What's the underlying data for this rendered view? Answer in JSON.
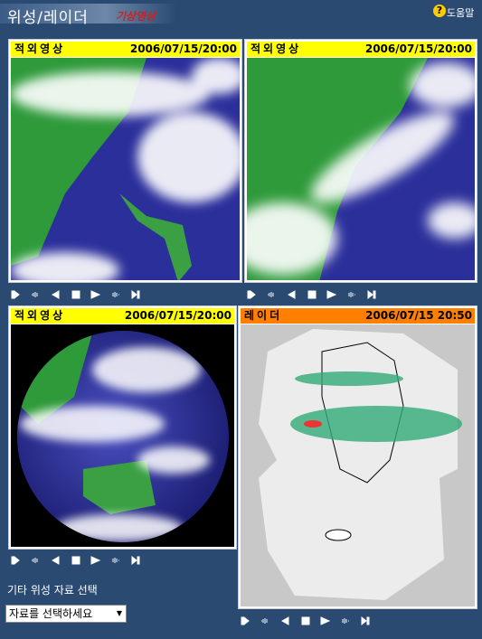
{
  "header": {
    "title": "위성/레이더",
    "subtitle": "기상영상",
    "help": "도움말"
  },
  "panels": [
    {
      "label": "적외영상",
      "timestamp": "2006/07/15/20:00"
    },
    {
      "label": "적외영상",
      "timestamp": "2006/07/15/20:00"
    },
    {
      "label": "적외영상",
      "timestamp": "2006/07/15/20:00"
    },
    {
      "label": "레이더",
      "timestamp": "2006/07/15 20:50"
    }
  ],
  "other_data": {
    "label": "기타 위성 자료 선택",
    "select": "자료를 선택하세요"
  }
}
